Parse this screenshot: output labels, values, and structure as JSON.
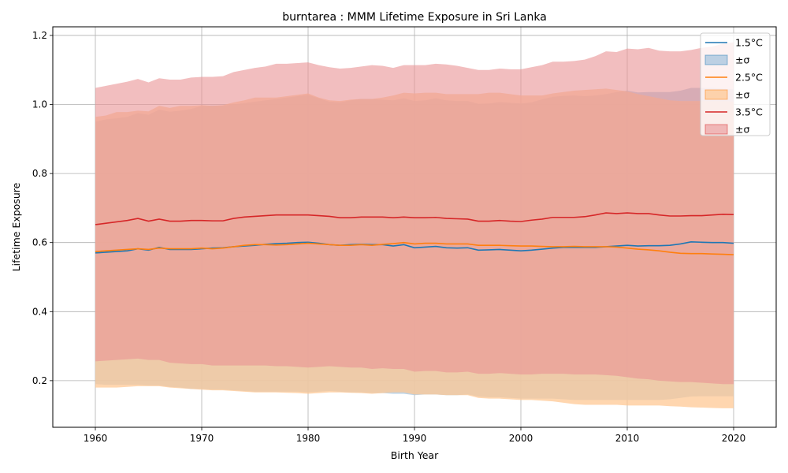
{
  "chart_data": {
    "type": "line",
    "title": "burntarea : MMM Lifetime Exposure in Sri Lanka",
    "xlabel": "Birth Year",
    "ylabel": "Lifetime Exposure",
    "xlim": [
      1956,
      2024
    ],
    "ylim": [
      0.065,
      1.225
    ],
    "xticks": [
      1960,
      1970,
      1980,
      1990,
      2000,
      2010,
      2020
    ],
    "yticks": [
      0.2,
      0.4,
      0.6,
      0.8,
      1.0,
      1.2
    ],
    "grid": true,
    "legend_position": "top-right",
    "legend": [
      {
        "label": "1.5°C",
        "kind": "line",
        "series": 0
      },
      {
        "label": "±σ",
        "kind": "band",
        "series": 0
      },
      {
        "label": "2.5°C",
        "kind": "line",
        "series": 1
      },
      {
        "label": "±σ",
        "kind": "band",
        "series": 1
      },
      {
        "label": "3.5°C",
        "kind": "line",
        "series": 2
      },
      {
        "label": "±σ",
        "kind": "band",
        "series": 2
      }
    ],
    "x": [
      1960,
      1961,
      1962,
      1963,
      1964,
      1965,
      1966,
      1967,
      1968,
      1969,
      1970,
      1971,
      1972,
      1973,
      1974,
      1975,
      1976,
      1977,
      1978,
      1979,
      1980,
      1981,
      1982,
      1983,
      1984,
      1985,
      1986,
      1987,
      1988,
      1989,
      1990,
      1991,
      1992,
      1993,
      1994,
      1995,
      1996,
      1997,
      1998,
      1999,
      2000,
      2001,
      2002,
      2003,
      2004,
      2005,
      2006,
      2007,
      2008,
      2009,
      2010,
      2011,
      2012,
      2013,
      2014,
      2015,
      2016,
      2017,
      2018,
      2019,
      2020
    ],
    "series": [
      {
        "name": "1.5°C",
        "color": "#1f77b4",
        "band_color": "#a6c4de",
        "band_opacity": 0.75,
        "mean": [
          0.57,
          0.572,
          0.574,
          0.576,
          0.582,
          0.578,
          0.586,
          0.58,
          0.58,
          0.58,
          0.582,
          0.584,
          0.585,
          0.588,
          0.59,
          0.592,
          0.595,
          0.597,
          0.598,
          0.6,
          0.601,
          0.598,
          0.594,
          0.592,
          0.594,
          0.595,
          0.594,
          0.594,
          0.59,
          0.594,
          0.585,
          0.587,
          0.589,
          0.585,
          0.584,
          0.585,
          0.578,
          0.579,
          0.58,
          0.578,
          0.576,
          0.578,
          0.581,
          0.584,
          0.586,
          0.586,
          0.586,
          0.586,
          0.588,
          0.59,
          0.592,
          0.59,
          0.591,
          0.591,
          0.592,
          0.596,
          0.602,
          0.601,
          0.6,
          0.6,
          0.598
        ],
        "upper": [
          0.95,
          0.957,
          0.96,
          0.964,
          0.975,
          0.97,
          0.985,
          0.979,
          0.982,
          0.987,
          0.996,
          0.997,
          0.997,
          1.0,
          1.004,
          1.008,
          1.012,
          1.016,
          1.02,
          1.024,
          1.028,
          1.018,
          1.008,
          1.006,
          1.012,
          1.016,
          1.016,
          1.014,
          1.012,
          1.018,
          1.01,
          1.012,
          1.018,
          1.012,
          1.01,
          1.01,
          1.002,
          1.003,
          1.007,
          1.005,
          1.003,
          1.006,
          1.015,
          1.022,
          1.025,
          1.026,
          1.024,
          1.026,
          1.03,
          1.036,
          1.04,
          1.035,
          1.036,
          1.036,
          1.036,
          1.04,
          1.048,
          1.048,
          1.048,
          1.046,
          1.044
        ],
        "lower": [
          0.19,
          0.188,
          0.188,
          0.188,
          0.188,
          0.186,
          0.186,
          0.182,
          0.18,
          0.176,
          0.176,
          0.174,
          0.174,
          0.172,
          0.17,
          0.168,
          0.168,
          0.168,
          0.168,
          0.168,
          0.166,
          0.168,
          0.17,
          0.168,
          0.166,
          0.166,
          0.164,
          0.164,
          0.162,
          0.162,
          0.158,
          0.16,
          0.16,
          0.158,
          0.158,
          0.16,
          0.154,
          0.152,
          0.152,
          0.15,
          0.148,
          0.148,
          0.148,
          0.148,
          0.146,
          0.144,
          0.144,
          0.144,
          0.144,
          0.144,
          0.144,
          0.144,
          0.144,
          0.144,
          0.146,
          0.15,
          0.154,
          0.155,
          0.155,
          0.155,
          0.155
        ]
      },
      {
        "name": "2.5°C",
        "color": "#ff7f0e",
        "band_color": "#ffc894",
        "band_opacity": 0.75,
        "mean": [
          0.574,
          0.576,
          0.578,
          0.58,
          0.582,
          0.58,
          0.584,
          0.582,
          0.582,
          0.582,
          0.584,
          0.582,
          0.584,
          0.588,
          0.592,
          0.594,
          0.594,
          0.593,
          0.594,
          0.596,
          0.598,
          0.596,
          0.594,
          0.592,
          0.592,
          0.594,
          0.592,
          0.595,
          0.597,
          0.6,
          0.596,
          0.598,
          0.598,
          0.596,
          0.596,
          0.596,
          0.592,
          0.592,
          0.592,
          0.591,
          0.59,
          0.59,
          0.589,
          0.588,
          0.588,
          0.589,
          0.588,
          0.588,
          0.588,
          0.587,
          0.584,
          0.581,
          0.579,
          0.576,
          0.572,
          0.569,
          0.568,
          0.568,
          0.567,
          0.566,
          0.565
        ],
        "upper": [
          0.964,
          0.968,
          0.978,
          0.978,
          0.982,
          0.98,
          0.996,
          0.99,
          0.996,
          0.996,
          0.998,
          0.996,
          0.998,
          1.006,
          1.012,
          1.02,
          1.02,
          1.02,
          1.024,
          1.028,
          1.032,
          1.02,
          1.012,
          1.01,
          1.014,
          1.016,
          1.016,
          1.02,
          1.026,
          1.034,
          1.032,
          1.034,
          1.034,
          1.03,
          1.03,
          1.03,
          1.03,
          1.034,
          1.034,
          1.03,
          1.026,
          1.026,
          1.026,
          1.032,
          1.036,
          1.04,
          1.042,
          1.044,
          1.046,
          1.042,
          1.038,
          1.03,
          1.024,
          1.018,
          1.012,
          1.01,
          1.01,
          1.01,
          1.01,
          1.01,
          1.008
        ],
        "lower": [
          0.18,
          0.18,
          0.18,
          0.182,
          0.184,
          0.184,
          0.184,
          0.18,
          0.178,
          0.176,
          0.174,
          0.172,
          0.172,
          0.17,
          0.168,
          0.166,
          0.166,
          0.166,
          0.165,
          0.164,
          0.162,
          0.164,
          0.166,
          0.166,
          0.165,
          0.164,
          0.162,
          0.164,
          0.166,
          0.166,
          0.16,
          0.16,
          0.16,
          0.158,
          0.158,
          0.158,
          0.15,
          0.148,
          0.148,
          0.146,
          0.144,
          0.144,
          0.142,
          0.14,
          0.136,
          0.132,
          0.13,
          0.13,
          0.13,
          0.13,
          0.128,
          0.128,
          0.128,
          0.128,
          0.126,
          0.125,
          0.123,
          0.122,
          0.121,
          0.12,
          0.12
        ]
      },
      {
        "name": "3.5°C",
        "color": "#d62728",
        "band_color": "#e99294",
        "band_opacity": 0.6,
        "mean": [
          0.652,
          0.656,
          0.66,
          0.664,
          0.67,
          0.662,
          0.668,
          0.662,
          0.662,
          0.664,
          0.664,
          0.663,
          0.663,
          0.67,
          0.674,
          0.676,
          0.678,
          0.68,
          0.68,
          0.68,
          0.68,
          0.678,
          0.676,
          0.672,
          0.672,
          0.674,
          0.674,
          0.674,
          0.672,
          0.674,
          0.672,
          0.672,
          0.673,
          0.67,
          0.669,
          0.668,
          0.662,
          0.662,
          0.664,
          0.662,
          0.661,
          0.665,
          0.668,
          0.673,
          0.673,
          0.673,
          0.675,
          0.68,
          0.686,
          0.684,
          0.686,
          0.684,
          0.684,
          0.68,
          0.677,
          0.677,
          0.678,
          0.678,
          0.68,
          0.682,
          0.681
        ],
        "upper": [
          1.048,
          1.054,
          1.06,
          1.066,
          1.074,
          1.064,
          1.076,
          1.072,
          1.072,
          1.078,
          1.08,
          1.08,
          1.082,
          1.094,
          1.1,
          1.106,
          1.11,
          1.118,
          1.118,
          1.12,
          1.122,
          1.114,
          1.108,
          1.104,
          1.106,
          1.11,
          1.114,
          1.112,
          1.106,
          1.114,
          1.114,
          1.114,
          1.118,
          1.116,
          1.112,
          1.106,
          1.1,
          1.1,
          1.104,
          1.102,
          1.102,
          1.108,
          1.114,
          1.124,
          1.124,
          1.126,
          1.13,
          1.14,
          1.154,
          1.152,
          1.162,
          1.16,
          1.164,
          1.156,
          1.154,
          1.154,
          1.158,
          1.164,
          1.168,
          1.176,
          1.18
        ],
        "lower": [
          0.256,
          0.258,
          0.26,
          0.262,
          0.264,
          0.26,
          0.26,
          0.252,
          0.25,
          0.248,
          0.248,
          0.244,
          0.244,
          0.244,
          0.244,
          0.244,
          0.244,
          0.242,
          0.242,
          0.24,
          0.238,
          0.24,
          0.242,
          0.24,
          0.238,
          0.238,
          0.234,
          0.236,
          0.234,
          0.234,
          0.226,
          0.228,
          0.228,
          0.224,
          0.224,
          0.226,
          0.22,
          0.22,
          0.222,
          0.22,
          0.218,
          0.218,
          0.22,
          0.22,
          0.22,
          0.218,
          0.218,
          0.218,
          0.216,
          0.214,
          0.21,
          0.206,
          0.204,
          0.2,
          0.198,
          0.196,
          0.196,
          0.194,
          0.192,
          0.19,
          0.19
        ]
      }
    ]
  }
}
